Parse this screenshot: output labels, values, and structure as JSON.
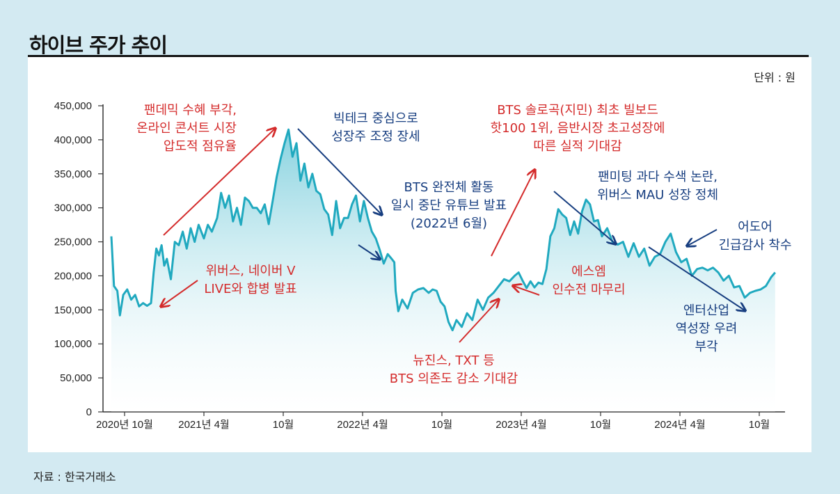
{
  "title": "하이브 주가 추이",
  "unit_label": "단위 : 원",
  "source": "자료 : 한국거래소",
  "colors": {
    "line": "#20a9bf",
    "area_top": "#8fd3e0",
    "red": "#d42b2b",
    "blue": "#173e80",
    "background": "#d3eaf2"
  },
  "chart_data": {
    "type": "area",
    "title": "하이브 주가 추이",
    "ylabel": "원",
    "ylim": [
      0,
      450000
    ],
    "yticks": [
      0,
      50000,
      100000,
      150000,
      200000,
      250000,
      300000,
      350000,
      400000,
      450000
    ],
    "ytick_labels": [
      "0",
      "50,000",
      "100,000",
      "150,000",
      "200,000",
      "250,000",
      "300,000",
      "350,000",
      "400,000",
      "450,000"
    ],
    "xlim": [
      0,
      49
    ],
    "xticks": [
      {
        "month": 1,
        "label": "2020년 10월"
      },
      {
        "month": 7,
        "label": "2021년 4월"
      },
      {
        "month": 13,
        "label": "10월"
      },
      {
        "month": 19,
        "label": "2022년 4월"
      },
      {
        "month": 25,
        "label": "10월"
      },
      {
        "month": 31,
        "label": "2023년 4월"
      },
      {
        "month": 37,
        "label": "10월"
      },
      {
        "month": 43,
        "label": "2024년 4월"
      },
      {
        "month": 49,
        "label": "10월"
      }
    ],
    "series": [
      {
        "name": "하이브 주가",
        "points": [
          [
            0.0,
            258000
          ],
          [
            0.2,
            185000
          ],
          [
            0.45,
            178000
          ],
          [
            0.65,
            142000
          ],
          [
            0.9,
            172000
          ],
          [
            1.2,
            180000
          ],
          [
            1.5,
            165000
          ],
          [
            1.8,
            172000
          ],
          [
            2.1,
            155000
          ],
          [
            2.4,
            160000
          ],
          [
            2.7,
            156000
          ],
          [
            3.0,
            160000
          ],
          [
            3.2,
            205000
          ],
          [
            3.4,
            240000
          ],
          [
            3.6,
            230000
          ],
          [
            3.8,
            245000
          ],
          [
            4.0,
            215000
          ],
          [
            4.2,
            225000
          ],
          [
            4.5,
            195000
          ],
          [
            4.8,
            250000
          ],
          [
            5.1,
            245000
          ],
          [
            5.4,
            265000
          ],
          [
            5.7,
            240000
          ],
          [
            6.0,
            270000
          ],
          [
            6.3,
            250000
          ],
          [
            6.6,
            275000
          ],
          [
            7.0,
            255000
          ],
          [
            7.3,
            275000
          ],
          [
            7.6,
            265000
          ],
          [
            8.0,
            285000
          ],
          [
            8.3,
            322000
          ],
          [
            8.6,
            300000
          ],
          [
            8.9,
            318000
          ],
          [
            9.2,
            280000
          ],
          [
            9.5,
            300000
          ],
          [
            9.8,
            275000
          ],
          [
            10.1,
            315000
          ],
          [
            10.4,
            310000
          ],
          [
            10.7,
            300000
          ],
          [
            11.0,
            300000
          ],
          [
            11.3,
            292000
          ],
          [
            11.6,
            305000
          ],
          [
            11.9,
            276000
          ],
          [
            12.2,
            310000
          ],
          [
            12.5,
            345000
          ],
          [
            12.8,
            372000
          ],
          [
            13.1,
            395000
          ],
          [
            13.4,
            415000
          ],
          [
            13.7,
            375000
          ],
          [
            14.0,
            395000
          ],
          [
            14.3,
            340000
          ],
          [
            14.6,
            365000
          ],
          [
            14.9,
            330000
          ],
          [
            15.2,
            350000
          ],
          [
            15.5,
            325000
          ],
          [
            15.8,
            320000
          ],
          [
            16.1,
            298000
          ],
          [
            16.4,
            290000
          ],
          [
            16.7,
            260000
          ],
          [
            17.0,
            310000
          ],
          [
            17.3,
            270000
          ],
          [
            17.6,
            285000
          ],
          [
            17.9,
            285000
          ],
          [
            18.2,
            305000
          ],
          [
            18.5,
            318000
          ],
          [
            18.8,
            280000
          ],
          [
            19.1,
            310000
          ],
          [
            19.4,
            285000
          ],
          [
            19.7,
            265000
          ],
          [
            20.0,
            255000
          ],
          [
            20.3,
            238000
          ],
          [
            20.6,
            218000
          ],
          [
            20.9,
            232000
          ],
          [
            21.2,
            225000
          ],
          [
            21.4,
            220000
          ],
          [
            21.5,
            178000
          ],
          [
            21.7,
            148000
          ],
          [
            22.0,
            165000
          ],
          [
            22.4,
            152000
          ],
          [
            22.8,
            175000
          ],
          [
            23.2,
            180000
          ],
          [
            23.6,
            182000
          ],
          [
            24.0,
            175000
          ],
          [
            24.3,
            180000
          ],
          [
            24.6,
            178000
          ],
          [
            24.9,
            162000
          ],
          [
            25.2,
            155000
          ],
          [
            25.5,
            132000
          ],
          [
            25.8,
            120000
          ],
          [
            26.1,
            135000
          ],
          [
            26.5,
            125000
          ],
          [
            26.9,
            145000
          ],
          [
            27.3,
            135000
          ],
          [
            27.7,
            165000
          ],
          [
            28.1,
            150000
          ],
          [
            28.5,
            168000
          ],
          [
            28.9,
            175000
          ],
          [
            29.3,
            185000
          ],
          [
            29.7,
            195000
          ],
          [
            30.1,
            192000
          ],
          [
            30.5,
            200000
          ],
          [
            30.8,
            205000
          ],
          [
            31.1,
            193000
          ],
          [
            31.4,
            182000
          ],
          [
            31.7,
            192000
          ],
          [
            32.0,
            183000
          ],
          [
            32.3,
            190000
          ],
          [
            32.6,
            188000
          ],
          [
            32.9,
            210000
          ],
          [
            33.2,
            258000
          ],
          [
            33.5,
            270000
          ],
          [
            33.8,
            298000
          ],
          [
            34.1,
            290000
          ],
          [
            34.4,
            285000
          ],
          [
            34.7,
            260000
          ],
          [
            35.0,
            280000
          ],
          [
            35.3,
            262000
          ],
          [
            35.6,
            295000
          ],
          [
            35.9,
            312000
          ],
          [
            36.2,
            305000
          ],
          [
            36.5,
            280000
          ],
          [
            36.8,
            282000
          ],
          [
            37.1,
            258000
          ],
          [
            37.5,
            270000
          ],
          [
            37.9,
            250000
          ],
          [
            38.3,
            246000
          ],
          [
            38.7,
            250000
          ],
          [
            39.1,
            228000
          ],
          [
            39.5,
            248000
          ],
          [
            39.9,
            228000
          ],
          [
            40.3,
            240000
          ],
          [
            40.7,
            215000
          ],
          [
            41.1,
            228000
          ],
          [
            41.5,
            232000
          ],
          [
            41.9,
            250000
          ],
          [
            42.3,
            262000
          ],
          [
            42.7,
            235000
          ],
          [
            43.1,
            220000
          ],
          [
            43.5,
            225000
          ],
          [
            43.9,
            200000
          ],
          [
            44.3,
            210000
          ],
          [
            44.7,
            212000
          ],
          [
            45.1,
            208000
          ],
          [
            45.5,
            212000
          ],
          [
            45.9,
            205000
          ],
          [
            46.3,
            193000
          ],
          [
            46.7,
            200000
          ],
          [
            47.1,
            183000
          ],
          [
            47.5,
            185000
          ],
          [
            47.9,
            168000
          ],
          [
            48.3,
            175000
          ],
          [
            48.7,
            178000
          ],
          [
            49.1,
            180000
          ],
          [
            49.5,
            185000
          ],
          [
            49.9,
            198000
          ],
          [
            50.2,
            205000
          ]
        ]
      }
    ],
    "annotations": [
      {
        "color": "red",
        "lines": [
          "팬데믹 수혜 부각,",
          "온라인 콘서트 시장",
          "압도적 점유율"
        ]
      },
      {
        "color": "blue",
        "lines": [
          "빅테크 중심으로",
          "성장주 조정 장세"
        ]
      },
      {
        "color": "red",
        "lines": [
          "BTS 솔로곡(지민) 최초 빌보드",
          "핫100 1위, 음반시장 초고성장에",
          "따른 실적 기대감"
        ]
      },
      {
        "color": "blue",
        "lines": [
          "BTS 완전체 활동",
          "일시 중단 유튜브 발표",
          "(2022년 6월)"
        ]
      },
      {
        "color": "blue",
        "lines": [
          "팬미팅 과다 수색 논란,",
          "위버스 MAU 성장 정체"
        ]
      },
      {
        "color": "red",
        "lines": [
          "위버스, 네이버 V",
          "LIVE와 합병 발표"
        ]
      },
      {
        "color": "blue",
        "lines": [
          "어도어",
          "긴급감사 착수"
        ]
      },
      {
        "color": "red",
        "lines": [
          "에스엠",
          "인수전 마무리"
        ]
      },
      {
        "color": "blue",
        "lines": [
          "엔터산업",
          "역성장 우려",
          "부각"
        ]
      },
      {
        "color": "red",
        "lines": [
          "뉴진스, TXT 등",
          "BTS 의존도 감소 기대감"
        ]
      }
    ]
  }
}
